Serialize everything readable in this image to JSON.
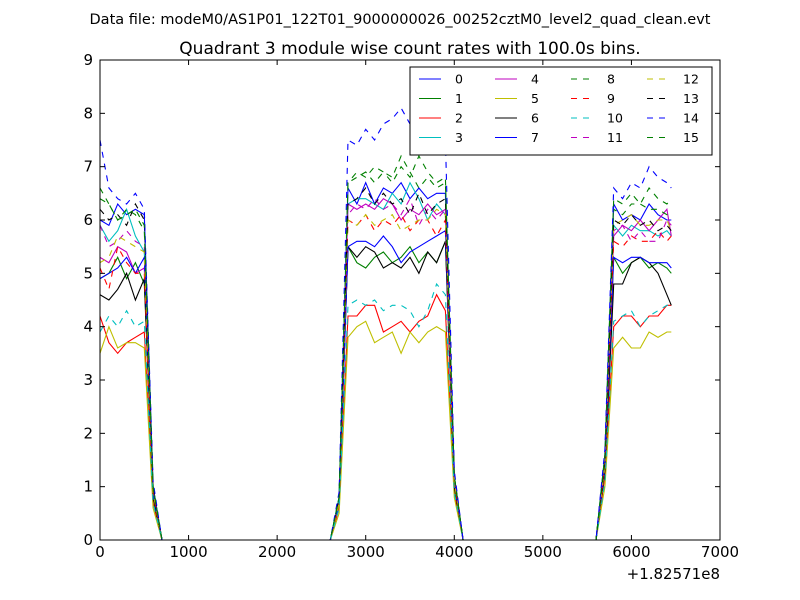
{
  "chart_data": {
    "type": "line",
    "suptitle": "Data file: modeM0/AS1P01_122T01_9000000026_00252cztM0_level2_quad_clean.evt",
    "title": "Quadrant 3 module wise count rates with 100.0s bins.",
    "xlabel": "",
    "ylabel": "",
    "x_offset_label": "+1.82571e8",
    "xlim": [
      0,
      7000
    ],
    "ylim": [
      0,
      9
    ],
    "xticks": [
      0,
      1000,
      2000,
      3000,
      4000,
      5000,
      6000,
      7000
    ],
    "yticks": [
      0,
      1,
      2,
      3,
      4,
      5,
      6,
      7,
      8,
      9
    ],
    "grid": false,
    "legend": {
      "placement": "top-right",
      "columns": 4
    },
    "x": [
      0,
      100,
      200,
      300,
      400,
      500,
      600,
      700,
      800,
      900,
      1000,
      1100,
      1200,
      1300,
      1400,
      1500,
      1600,
      1700,
      1800,
      1900,
      2000,
      2100,
      2200,
      2300,
      2400,
      2500,
      2600,
      2700,
      2800,
      2900,
      3000,
      3100,
      3200,
      3300,
      3400,
      3500,
      3600,
      3700,
      3800,
      3900,
      4000,
      4100,
      4200,
      4300,
      4400,
      4500,
      4600,
      4700,
      4800,
      4900,
      5000,
      5100,
      5200,
      5300,
      5400,
      5500,
      5600,
      5700,
      5800,
      5900,
      6000,
      6100,
      6200,
      6300,
      6400,
      6450
    ],
    "series": [
      {
        "name": "0",
        "color": "#0000ff",
        "dash": "solid",
        "values": [
          6.0,
          5.9,
          6.3,
          6.1,
          6.2,
          6.1,
          1.0,
          0,
          0,
          0,
          0,
          0,
          0,
          0,
          0,
          0,
          0,
          0,
          0,
          0,
          0,
          0,
          0,
          0,
          0,
          0,
          0,
          0.8,
          6.6,
          6.3,
          6.7,
          6.3,
          6.6,
          6.5,
          6.7,
          6.4,
          6.6,
          6.4,
          6.5,
          6.5,
          1.2,
          0,
          0,
          0,
          0,
          0,
          0,
          0,
          0,
          0,
          0,
          0,
          0,
          0,
          0,
          0,
          0,
          1.6,
          6.3,
          6.0,
          6.1,
          6.0,
          6.3,
          6.1,
          6.0,
          6.0
        ]
      },
      {
        "name": "1",
        "color": "#008000",
        "dash": "solid",
        "values": [
          4.9,
          5.0,
          5.3,
          4.9,
          5.2,
          4.8,
          0.9,
          0,
          0,
          0,
          0,
          0,
          0,
          0,
          0,
          0,
          0,
          0,
          0,
          0,
          0,
          0,
          0,
          0,
          0,
          0,
          0,
          0.7,
          5.5,
          5.2,
          5.1,
          5.3,
          5.4,
          5.2,
          5.3,
          5.5,
          5.2,
          5.4,
          5.2,
          5.6,
          1.0,
          0,
          0,
          0,
          0,
          0,
          0,
          0,
          0,
          0,
          0,
          0,
          0,
          0,
          0,
          0,
          0,
          1.4,
          5.3,
          5.0,
          5.2,
          5.3,
          5.1,
          5.2,
          5.1,
          5.0
        ]
      },
      {
        "name": "2",
        "color": "#ff0000",
        "dash": "solid",
        "values": [
          4.2,
          3.7,
          3.5,
          3.7,
          3.8,
          3.9,
          0.7,
          0,
          0,
          0,
          0,
          0,
          0,
          0,
          0,
          0,
          0,
          0,
          0,
          0,
          0,
          0,
          0,
          0,
          0,
          0,
          0,
          0.6,
          4.2,
          4.2,
          4.4,
          4.4,
          3.9,
          4.0,
          4.1,
          3.9,
          4.1,
          4.2,
          4.6,
          4.3,
          0.9,
          0,
          0,
          0,
          0,
          0,
          0,
          0,
          0,
          0,
          0,
          0,
          0,
          0,
          0,
          0,
          0,
          1.2,
          4.0,
          4.2,
          4.2,
          4.0,
          4.2,
          4.2,
          4.4,
          4.4
        ]
      },
      {
        "name": "3",
        "color": "#00bfbf",
        "dash": "solid",
        "values": [
          5.9,
          5.6,
          5.8,
          6.2,
          5.7,
          5.4,
          0.9,
          0,
          0,
          0,
          0,
          0,
          0,
          0,
          0,
          0,
          0,
          0,
          0,
          0,
          0,
          0,
          0,
          0,
          0,
          0,
          0,
          0.8,
          6.3,
          6.4,
          6.4,
          6.3,
          6.2,
          6.5,
          6.3,
          6.7,
          6.4,
          6.0,
          6.3,
          6.1,
          1.1,
          0,
          0,
          0,
          0,
          0,
          0,
          0,
          0,
          0,
          0,
          0,
          0,
          0,
          0,
          0,
          0,
          1.5,
          5.9,
          5.7,
          5.9,
          5.8,
          5.8,
          5.7,
          5.8,
          5.7
        ]
      },
      {
        "name": "4",
        "color": "#bf00bf",
        "dash": "solid",
        "values": [
          5.3,
          5.2,
          5.5,
          5.4,
          5.0,
          5.1,
          0.9,
          0,
          0,
          0,
          0,
          0,
          0,
          0,
          0,
          0,
          0,
          0,
          0,
          0,
          0,
          0,
          0,
          0,
          0,
          0,
          0,
          0.7,
          6.3,
          6.2,
          6.3,
          6.2,
          6.4,
          6.3,
          6.0,
          6.2,
          6.1,
          6.3,
          6.1,
          6.2,
          1.1,
          0,
          0,
          0,
          0,
          0,
          0,
          0,
          0,
          0,
          0,
          0,
          0,
          0,
          0,
          0,
          0,
          1.4,
          5.7,
          5.9,
          5.8,
          6.0,
          5.8,
          6.0,
          6.2,
          5.7
        ]
      },
      {
        "name": "5",
        "color": "#bfbf00",
        "dash": "solid",
        "values": [
          3.5,
          4.0,
          3.6,
          3.7,
          3.7,
          3.6,
          0.6,
          0,
          0,
          0,
          0,
          0,
          0,
          0,
          0,
          0,
          0,
          0,
          0,
          0,
          0,
          0,
          0,
          0,
          0,
          0,
          0,
          0.5,
          3.8,
          4.0,
          4.1,
          3.7,
          3.8,
          3.9,
          3.5,
          3.9,
          3.7,
          3.9,
          4.0,
          3.9,
          0.8,
          0,
          0,
          0,
          0,
          0,
          0,
          0,
          0,
          0,
          0,
          0,
          0,
          0,
          0,
          0,
          0,
          1.0,
          3.6,
          3.8,
          3.6,
          3.6,
          3.9,
          3.8,
          3.9,
          3.9
        ]
      },
      {
        "name": "6",
        "color": "#000000",
        "dash": "solid",
        "values": [
          4.6,
          4.5,
          4.7,
          5.0,
          4.5,
          4.9,
          0.8,
          0,
          0,
          0,
          0,
          0,
          0,
          0,
          0,
          0,
          0,
          0,
          0,
          0,
          0,
          0,
          0,
          0,
          0,
          0,
          0,
          0.7,
          5.5,
          5.3,
          5.5,
          5.4,
          5.1,
          5.2,
          5.1,
          5.3,
          5.0,
          5.4,
          5.2,
          5.6,
          1.0,
          0,
          0,
          0,
          0,
          0,
          0,
          0,
          0,
          0,
          0,
          0,
          0,
          0,
          0,
          0,
          0,
          1.3,
          4.8,
          4.8,
          5.2,
          5.3,
          5.2,
          5.0,
          4.6,
          4.4
        ]
      },
      {
        "name": "7",
        "color": "#0000ff",
        "dash": "solid",
        "values": [
          4.9,
          5.0,
          5.1,
          5.3,
          5.0,
          5.3,
          0.9,
          0,
          0,
          0,
          0,
          0,
          0,
          0,
          0,
          0,
          0,
          0,
          0,
          0,
          0,
          0,
          0,
          0,
          0,
          0,
          0,
          0.7,
          5.5,
          5.6,
          5.6,
          5.5,
          5.7,
          5.5,
          5.2,
          5.4,
          5.5,
          5.6,
          5.7,
          5.8,
          1.1,
          0,
          0,
          0,
          0,
          0,
          0,
          0,
          0,
          0,
          0,
          0,
          0,
          0,
          0,
          0,
          0,
          1.4,
          5.3,
          5.2,
          5.3,
          5.3,
          5.2,
          5.2,
          5.2,
          5.1
        ]
      },
      {
        "name": "8",
        "color": "#008000",
        "dash": "dashed",
        "values": [
          6.4,
          6.3,
          6.0,
          6.2,
          6.1,
          5.8,
          1.0,
          0,
          0,
          0,
          0,
          0,
          0,
          0,
          0,
          0,
          0,
          0,
          0,
          0,
          0,
          0,
          0,
          0,
          0,
          0,
          0,
          0.8,
          6.7,
          6.8,
          6.9,
          6.7,
          6.9,
          6.8,
          7.2,
          6.9,
          6.6,
          6.8,
          6.6,
          6.7,
          1.2,
          0,
          0,
          0,
          0,
          0,
          0,
          0,
          0,
          0,
          0,
          0,
          0,
          0,
          0,
          0,
          0,
          1.6,
          6.2,
          6.1,
          6.3,
          6.3,
          6.2,
          6.2,
          6.1,
          6.1
        ]
      },
      {
        "name": "9",
        "color": "#ff0000",
        "dash": "dashed",
        "values": [
          5.1,
          4.7,
          5.5,
          5.2,
          5.0,
          5.0,
          0.9,
          0,
          0,
          0,
          0,
          0,
          0,
          0,
          0,
          0,
          0,
          0,
          0,
          0,
          0,
          0,
          0,
          0,
          0,
          0,
          0,
          0.7,
          6.0,
          5.9,
          6.1,
          5.8,
          6.0,
          5.9,
          6.1,
          5.8,
          6.0,
          6.0,
          5.7,
          6.0,
          1.1,
          0,
          0,
          0,
          0,
          0,
          0,
          0,
          0,
          0,
          0,
          0,
          0,
          0,
          0,
          0,
          0,
          1.4,
          5.6,
          5.5,
          5.7,
          5.6,
          5.6,
          5.8,
          5.6,
          5.7
        ]
      },
      {
        "name": "10",
        "color": "#00bfbf",
        "dash": "dashed",
        "values": [
          3.9,
          4.2,
          4.0,
          4.3,
          4.0,
          4.1,
          0.7,
          0,
          0,
          0,
          0,
          0,
          0,
          0,
          0,
          0,
          0,
          0,
          0,
          0,
          0,
          0,
          0,
          0,
          0,
          0,
          0,
          0.6,
          4.4,
          4.5,
          4.4,
          4.5,
          4.3,
          4.4,
          4.4,
          4.3,
          4.0,
          4.3,
          4.8,
          4.6,
          0.9,
          0,
          0,
          0,
          0,
          0,
          0,
          0,
          0,
          0,
          0,
          0,
          0,
          0,
          0,
          0,
          0,
          1.1,
          4.1,
          4.2,
          4.3,
          4.0,
          4.2,
          4.3,
          4.4,
          4.4
        ]
      },
      {
        "name": "11",
        "color": "#bf00bf",
        "dash": "dashed",
        "values": [
          5.9,
          5.5,
          5.6,
          5.8,
          5.6,
          5.5,
          0.9,
          0,
          0,
          0,
          0,
          0,
          0,
          0,
          0,
          0,
          0,
          0,
          0,
          0,
          0,
          0,
          0,
          0,
          0,
          0,
          0,
          0.7,
          6.1,
          6.3,
          6.2,
          6.4,
          6.2,
          6.3,
          6.1,
          6.4,
          5.9,
          6.2,
          6.0,
          6.2,
          1.1,
          0,
          0,
          0,
          0,
          0,
          0,
          0,
          0,
          0,
          0,
          0,
          0,
          0,
          0,
          0,
          0,
          1.4,
          5.8,
          5.9,
          5.6,
          5.8,
          5.6,
          5.6,
          6.0,
          5.9
        ]
      },
      {
        "name": "12",
        "color": "#bfbf00",
        "dash": "dashed",
        "values": [
          5.2,
          5.3,
          5.7,
          5.6,
          5.5,
          5.4,
          0.9,
          0,
          0,
          0,
          0,
          0,
          0,
          0,
          0,
          0,
          0,
          0,
          0,
          0,
          0,
          0,
          0,
          0,
          0,
          0,
          0,
          0.7,
          6.0,
          5.9,
          6.1,
          5.9,
          6.0,
          6.1,
          5.8,
          5.9,
          6.0,
          6.0,
          6.2,
          6.1,
          1.1,
          0,
          0,
          0,
          0,
          0,
          0,
          0,
          0,
          0,
          0,
          0,
          0,
          0,
          0,
          0,
          0,
          1.4,
          5.9,
          6.0,
          6.1,
          5.9,
          5.9,
          6.0,
          6.0,
          5.8
        ]
      },
      {
        "name": "13",
        "color": "#000000",
        "dash": "dashed",
        "values": [
          6.2,
          6.0,
          6.1,
          5.9,
          6.3,
          6.0,
          1.0,
          0,
          0,
          0,
          0,
          0,
          0,
          0,
          0,
          0,
          0,
          0,
          0,
          0,
          0,
          0,
          0,
          0,
          0,
          0,
          0,
          0.8,
          6.3,
          6.4,
          6.6,
          6.3,
          6.5,
          6.3,
          6.4,
          6.1,
          6.5,
          6.1,
          6.3,
          6.4,
          1.2,
          0,
          0,
          0,
          0,
          0,
          0,
          0,
          0,
          0,
          0,
          0,
          0,
          0,
          0,
          0,
          0,
          1.5,
          6.0,
          5.9,
          6.1,
          5.9,
          6.0,
          5.8,
          5.9,
          5.8
        ]
      },
      {
        "name": "14",
        "color": "#0000ff",
        "dash": "dashed",
        "values": [
          7.5,
          6.6,
          6.4,
          6.3,
          6.5,
          6.2,
          1.1,
          0,
          0,
          0,
          0,
          0,
          0,
          0,
          0,
          0,
          0,
          0,
          0,
          0,
          0,
          0,
          0,
          0,
          0,
          0,
          0,
          0.9,
          7.5,
          7.4,
          7.7,
          7.5,
          7.8,
          7.9,
          8.1,
          7.8,
          7.6,
          7.7,
          7.6,
          7.5,
          1.3,
          0,
          0,
          0,
          0,
          0,
          0,
          0,
          0,
          0,
          0,
          0,
          0,
          0,
          0,
          0,
          0,
          1.7,
          6.6,
          6.4,
          6.7,
          6.6,
          7.0,
          6.8,
          6.7,
          6.6
        ]
      },
      {
        "name": "15",
        "color": "#008000",
        "dash": "dashed",
        "values": [
          6.6,
          6.3,
          6.0,
          6.1,
          6.2,
          5.9,
          1.0,
          0,
          0,
          0,
          0,
          0,
          0,
          0,
          0,
          0,
          0,
          0,
          0,
          0,
          0,
          0,
          0,
          0,
          0,
          0,
          0,
          0.8,
          6.7,
          6.9,
          6.8,
          7.0,
          6.9,
          6.7,
          7.0,
          6.8,
          7.2,
          6.9,
          6.7,
          6.8,
          1.2,
          0,
          0,
          0,
          0,
          0,
          0,
          0,
          0,
          0,
          0,
          0,
          0,
          0,
          0,
          0,
          0,
          1.6,
          6.4,
          6.3,
          6.5,
          6.3,
          6.6,
          6.4,
          6.3,
          6.4
        ]
      }
    ]
  }
}
